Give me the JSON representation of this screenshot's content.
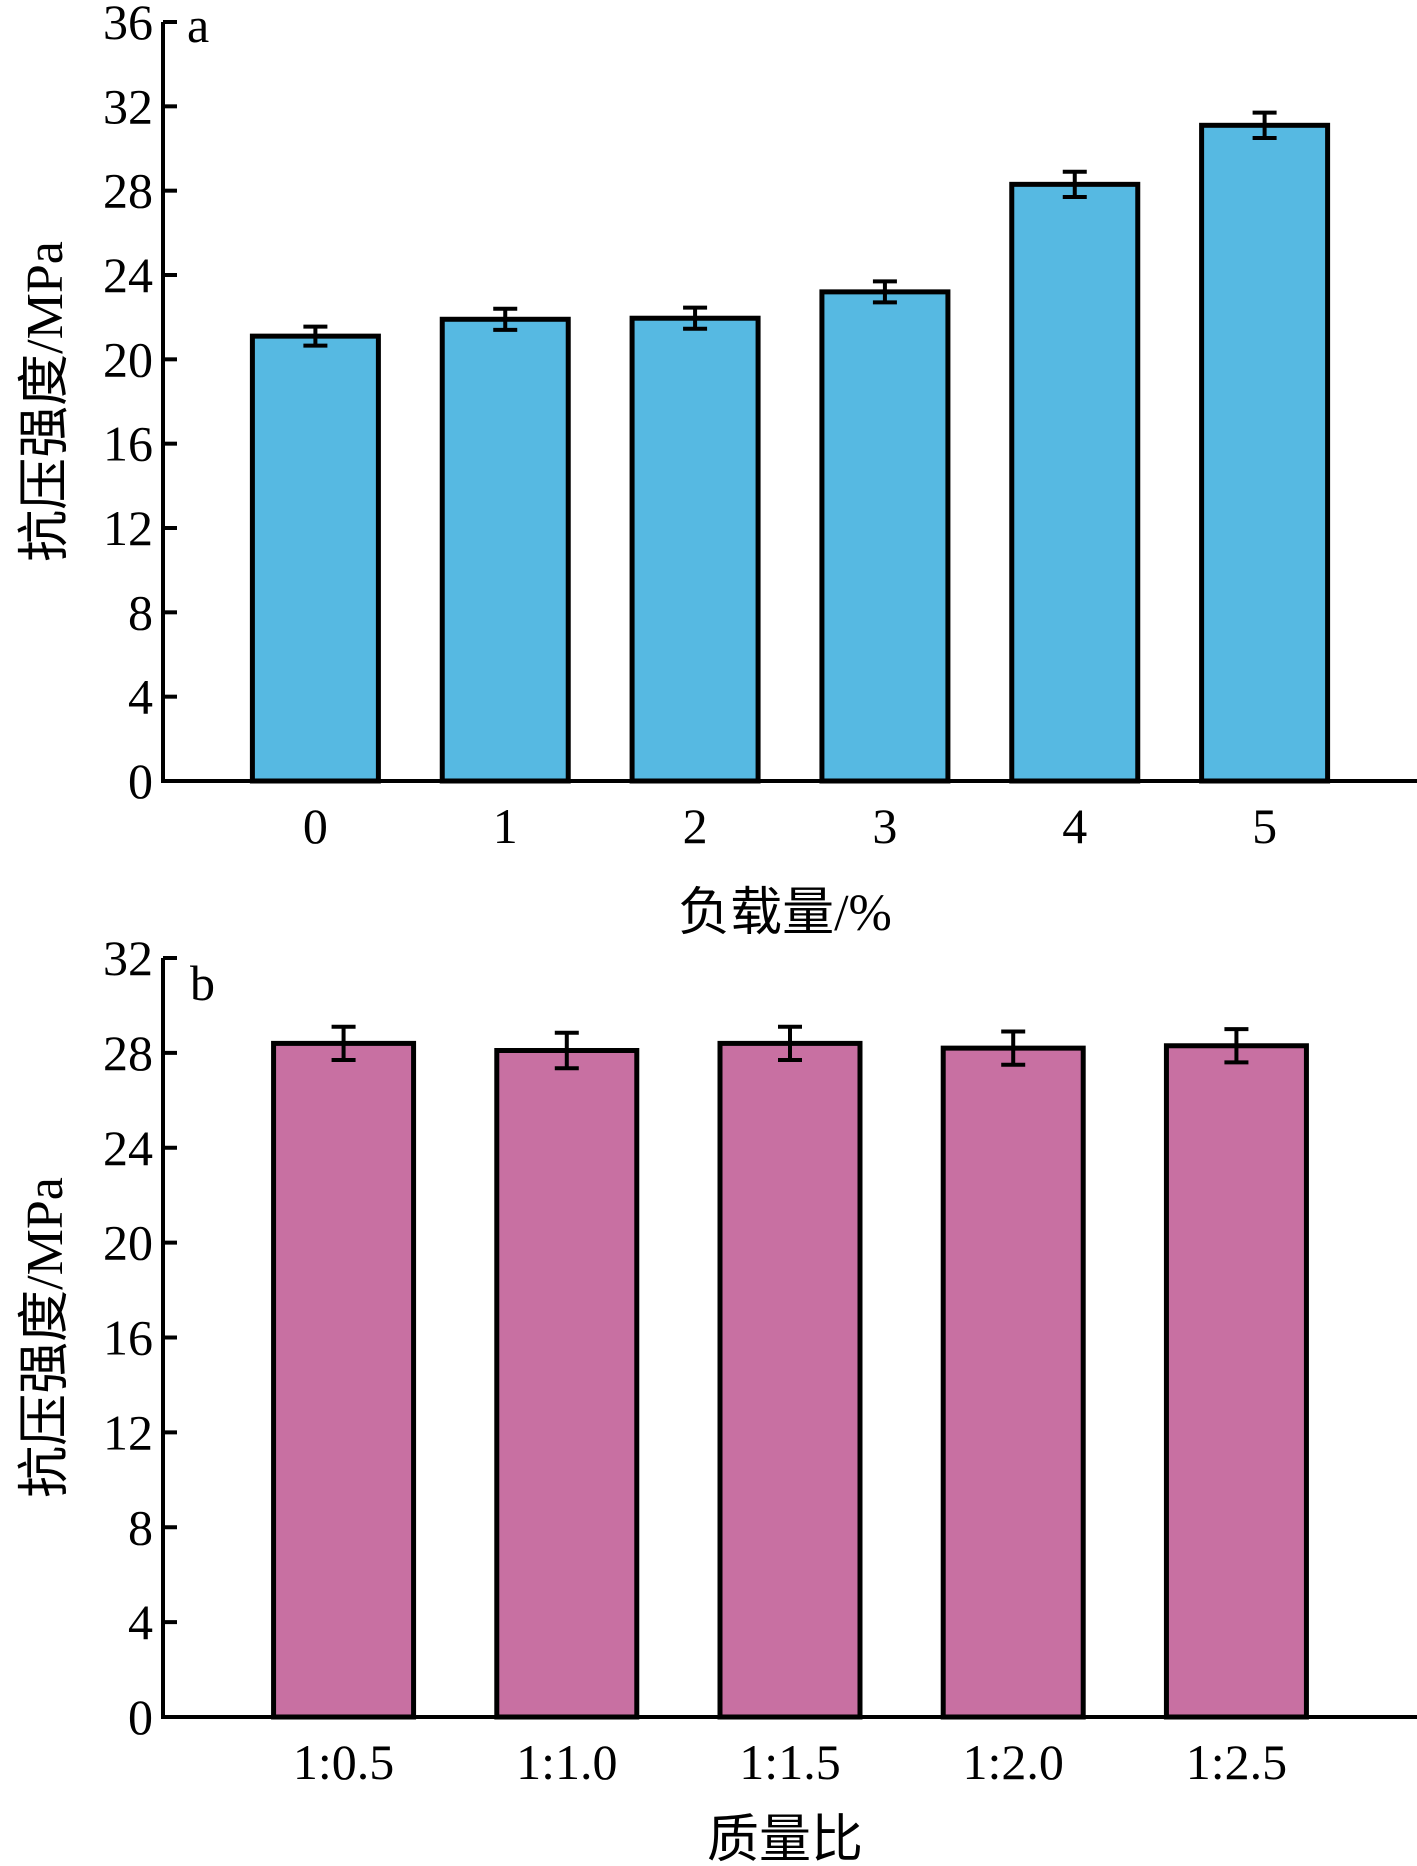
{
  "chart_data": [
    {
      "type": "bar",
      "panel_label": "a",
      "categories": [
        "0",
        "1",
        "2",
        "3",
        "4",
        "5"
      ],
      "values": [
        21.1,
        21.9,
        21.95,
        23.2,
        28.3,
        31.1
      ],
      "errors": [
        0.45,
        0.5,
        0.5,
        0.5,
        0.6,
        0.6
      ],
      "xlabel": "负载量/%",
      "ylabel": "抗压强度/MPa",
      "ylim": [
        0,
        36
      ],
      "yticks": [
        0,
        4,
        8,
        12,
        16,
        20,
        24,
        28,
        32,
        36
      ],
      "bar_color": "#56b9e2",
      "grid": false
    },
    {
      "type": "bar",
      "panel_label": "b",
      "categories": [
        "1:0.5",
        "1:1.0",
        "1:1.5",
        "1:2.0",
        "1:2.5"
      ],
      "values": [
        28.4,
        28.1,
        28.4,
        28.2,
        28.3
      ],
      "errors": [
        0.7,
        0.75,
        0.7,
        0.7,
        0.7
      ],
      "xlabel": "质量比",
      "ylabel": "抗压强度/MPa",
      "ylim": [
        0,
        32
      ],
      "yticks": [
        0,
        4,
        8,
        12,
        16,
        20,
        24,
        28,
        32
      ],
      "bar_color": "#c870a2",
      "grid": false
    }
  ]
}
